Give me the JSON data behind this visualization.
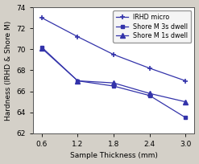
{
  "x": [
    0.6,
    1.2,
    1.8,
    2.4,
    3.0
  ],
  "irhd_micro": [
    73.0,
    71.2,
    69.5,
    68.2,
    67.0
  ],
  "shore_3s": [
    70.2,
    67.0,
    66.5,
    65.6,
    63.5
  ],
  "shore_1s": [
    70.1,
    67.0,
    66.8,
    65.8,
    65.0
  ],
  "xlabel": "Sample Thickness (mm)",
  "ylabel": "Hardness (IRHD & Shore M)",
  "ylim": [
    62,
    74
  ],
  "xlim": [
    0.45,
    3.15
  ],
  "yticks": [
    62,
    64,
    66,
    68,
    70,
    72,
    74
  ],
  "xticks": [
    0.6,
    1.2,
    1.8,
    2.4,
    3.0
  ],
  "legend_labels": [
    "IRHD micro",
    "Shore M 3s dwell",
    "Shore M 1s dwell"
  ],
  "line_color": "#3333aa",
  "background_color": "#d4d0c8",
  "plot_bg_color": "#ffffff",
  "label_fontsize": 6.5,
  "tick_fontsize": 6.5,
  "legend_fontsize": 5.8
}
